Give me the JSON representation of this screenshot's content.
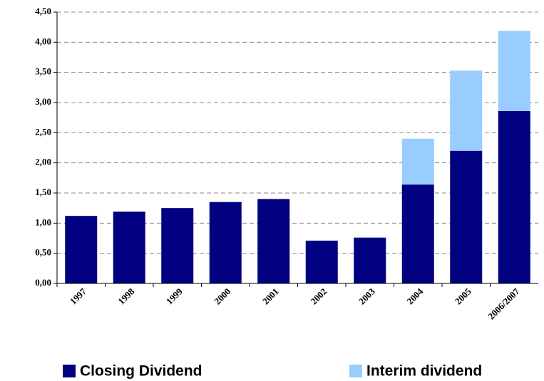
{
  "chart_data": {
    "type": "stacked_bar",
    "categories": [
      "1997",
      "1998",
      "1999",
      "2000",
      "2001",
      "2002",
      "2003",
      "2004",
      "2005",
      "2006/2007"
    ],
    "series": [
      {
        "name": "Closing Dividend",
        "color": "#000080",
        "values": [
          1.12,
          1.19,
          1.25,
          1.35,
          1.4,
          0.71,
          0.76,
          1.64,
          2.2,
          2.86
        ]
      },
      {
        "name": "Interim dividend",
        "color": "#99ccff",
        "values": [
          0,
          0,
          0,
          0,
          0,
          0,
          0,
          0.76,
          1.33,
          1.33
        ]
      }
    ],
    "ylim": [
      0,
      4.5
    ],
    "yticks": [
      {
        "value": 0,
        "label": "0,00"
      },
      {
        "value": 0.5,
        "label": "0,50"
      },
      {
        "value": 1,
        "label": "1,00"
      },
      {
        "value": 1.5,
        "label": "1,50"
      },
      {
        "value": 2,
        "label": "2,00"
      },
      {
        "value": 2.5,
        "label": "2,50"
      },
      {
        "value": 3,
        "label": "3,00"
      },
      {
        "value": 3.5,
        "label": "3,50"
      },
      {
        "value": 4,
        "label": "4,00"
      },
      {
        "value": 4.5,
        "label": "4,50"
      }
    ],
    "grid": true
  }
}
